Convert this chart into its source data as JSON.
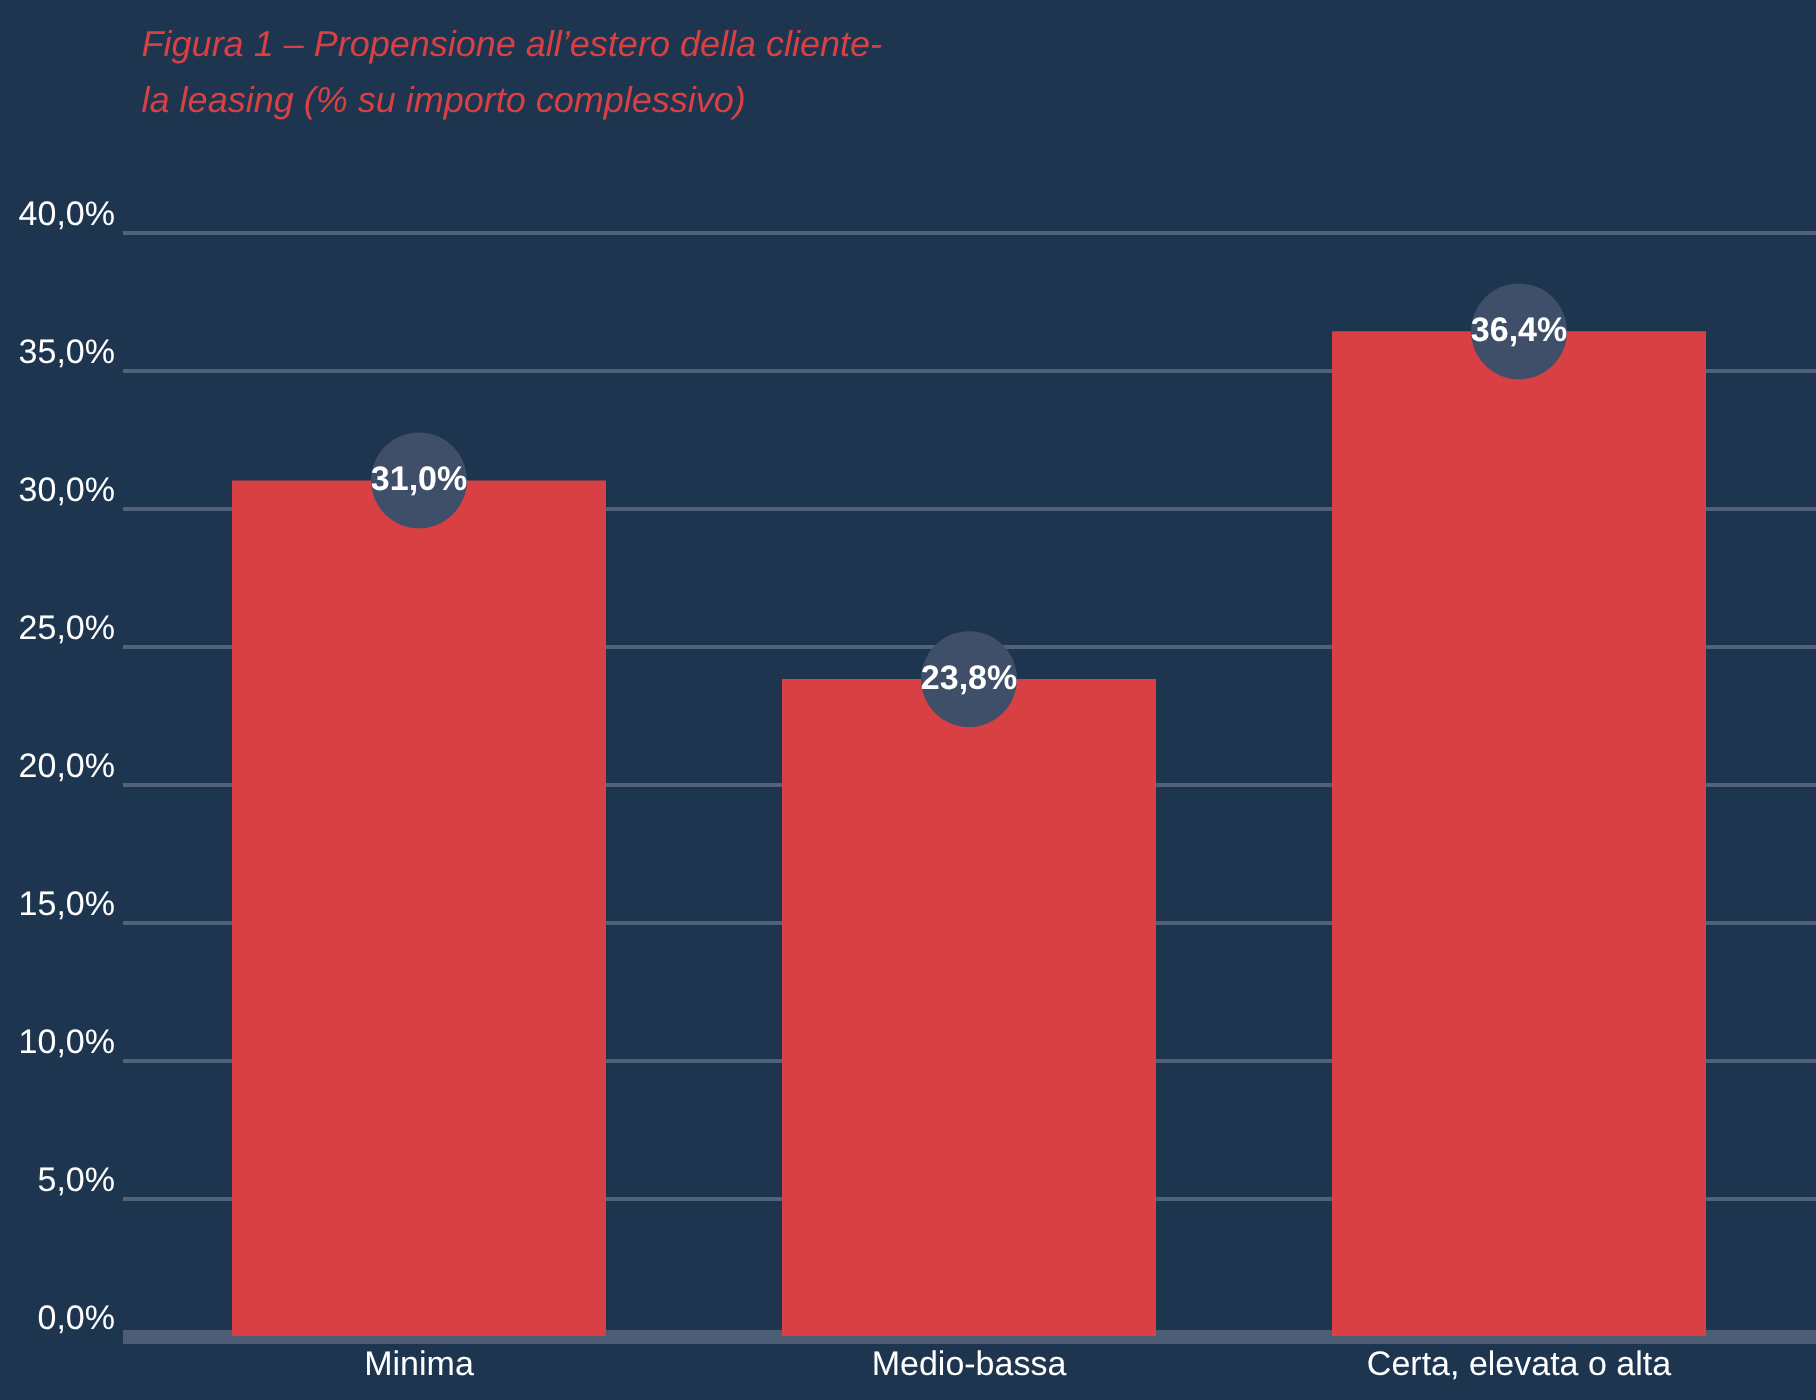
{
  "chart_data": {
    "type": "bar",
    "title": "Figura 1 – Propensione all’estero della cliente-\nla leasing (% su importo complessivo)",
    "categories": [
      "Minima",
      "Medio-bassa",
      "Certa, elevata o alta"
    ],
    "values": [
      31.0,
      23.8,
      36.4
    ],
    "value_labels": [
      "31,0%",
      "23,8%",
      "36,4%"
    ],
    "color": "#d94043",
    "ylim": [
      0,
      40
    ],
    "yticks": [
      {
        "value": 0,
        "label": "0,0%"
      },
      {
        "value": 5,
        "label": "5,0%"
      },
      {
        "value": 10,
        "label": "10,0%"
      },
      {
        "value": 15,
        "label": "15,0%"
      },
      {
        "value": 20,
        "label": "20,0%"
      },
      {
        "value": 25,
        "label": "25,0%"
      },
      {
        "value": 30,
        "label": "30,0%"
      },
      {
        "value": 35,
        "label": "35,0%"
      },
      {
        "value": 40,
        "label": "40,0%"
      }
    ],
    "grid": "y"
  }
}
